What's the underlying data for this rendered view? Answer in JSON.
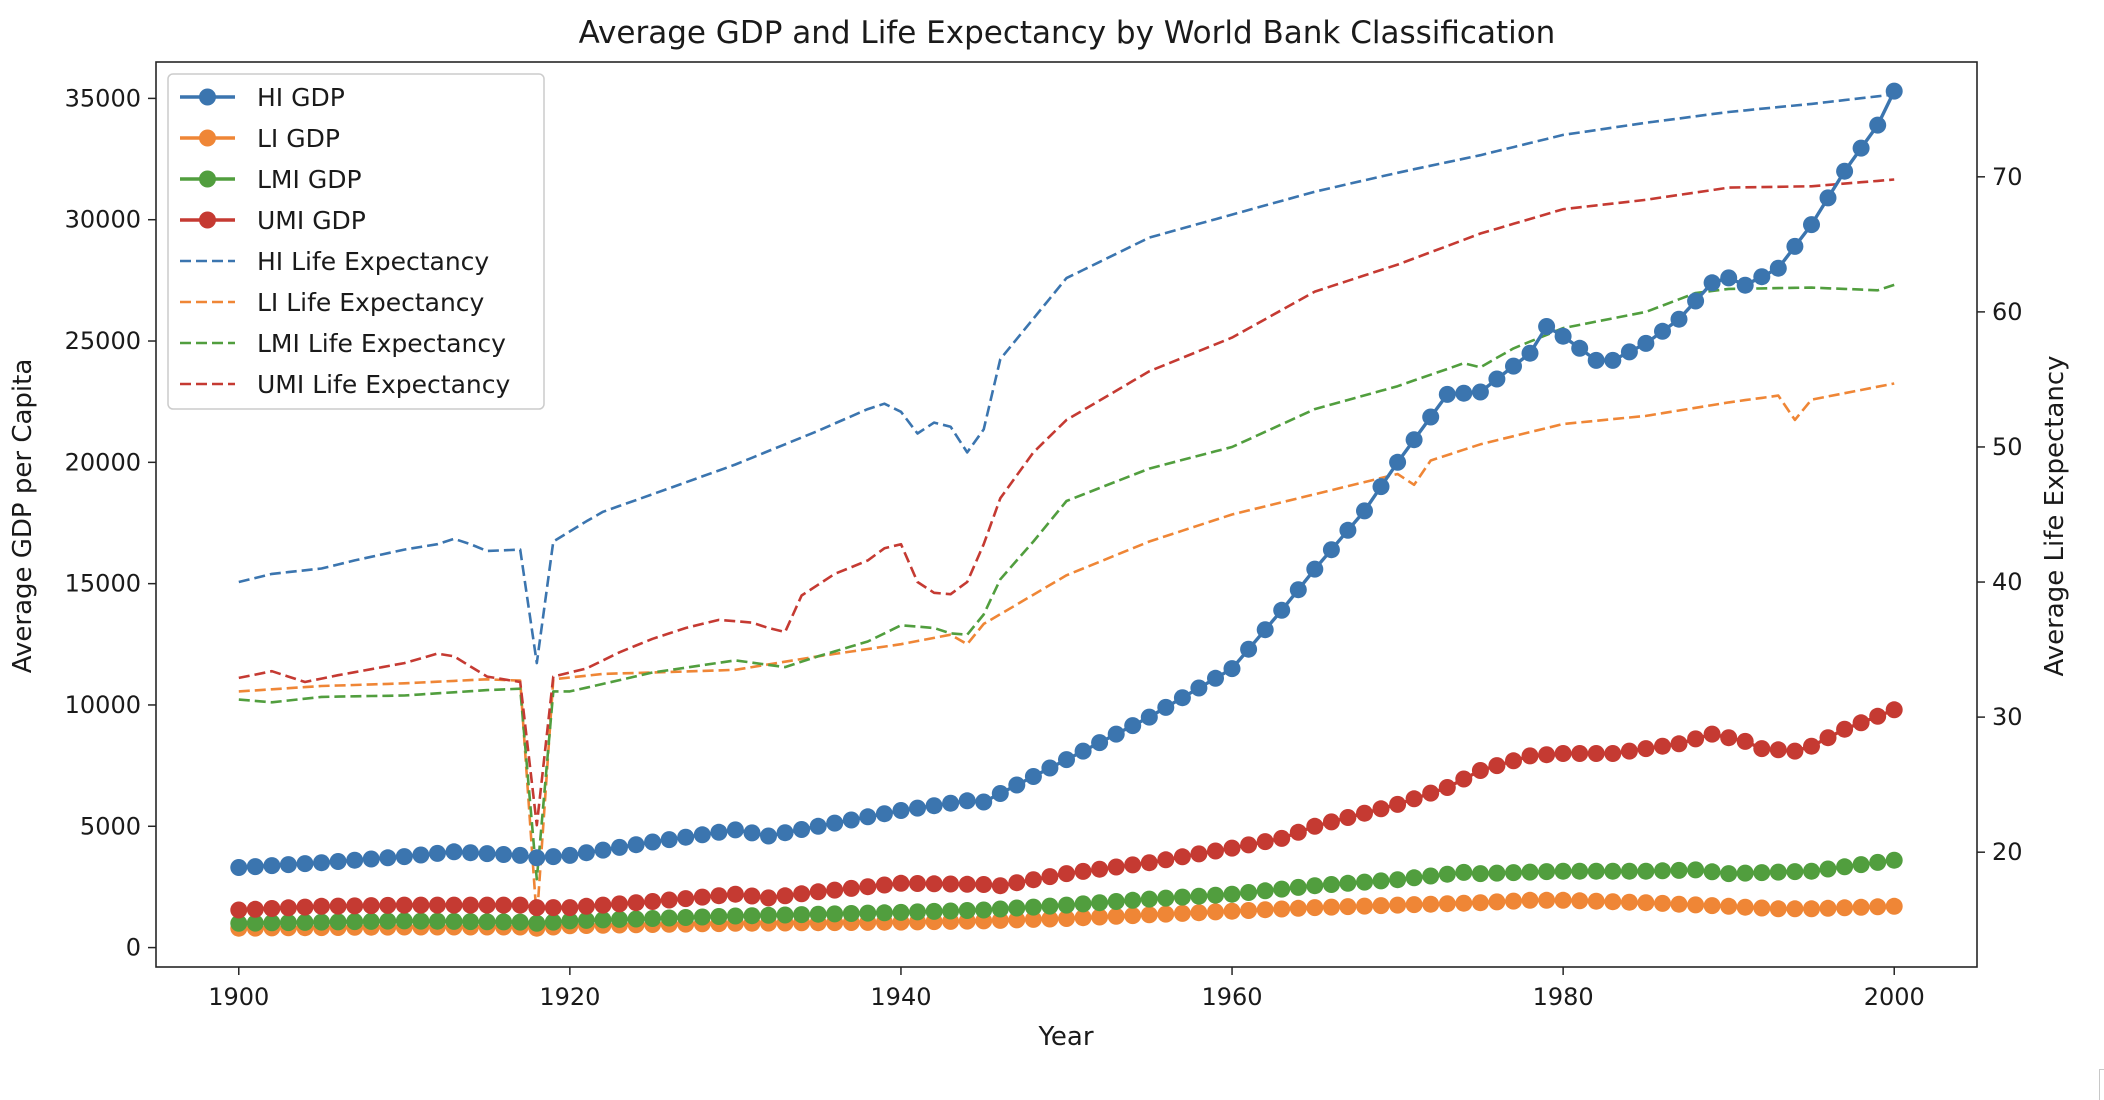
{
  "chart_data": {
    "type": "line",
    "title": "Average GDP and Life Expectancy by World Bank Classification",
    "xlabel": "Year",
    "ylabel": "Average GDP per Capita",
    "y2label": "Average Life Expectancy",
    "xlim": [
      1895,
      2005
    ],
    "ylim": [
      -800,
      36500
    ],
    "y2lim": [
      11.5,
      78.5
    ],
    "xticks": [
      1900,
      1920,
      1940,
      1960,
      1980,
      2000
    ],
    "yticks": [
      0,
      5000,
      10000,
      15000,
      20000,
      25000,
      30000,
      35000
    ],
    "y2ticks": [
      20,
      30,
      40,
      50,
      60,
      70
    ],
    "grid": false,
    "legend_position": "upper-left",
    "x_start": 1900,
    "x_end": 2000,
    "series": [
      {
        "name": "HI GDP",
        "axis": "left",
        "style": "solid-marker",
        "color": "#3b75af",
        "points": [
          [
            1900,
            3300
          ],
          [
            1905,
            3500
          ],
          [
            1910,
            3750
          ],
          [
            1913,
            3950
          ],
          [
            1917,
            3800
          ],
          [
            1918,
            3700
          ],
          [
            1920,
            3800
          ],
          [
            1925,
            4350
          ],
          [
            1930,
            4850
          ],
          [
            1932,
            4600
          ],
          [
            1935,
            5000
          ],
          [
            1940,
            5650
          ],
          [
            1944,
            6050
          ],
          [
            1945,
            6000
          ],
          [
            1950,
            7750
          ],
          [
            1955,
            9500
          ],
          [
            1960,
            11500
          ],
          [
            1963,
            13900
          ],
          [
            1965,
            15600
          ],
          [
            1968,
            18000
          ],
          [
            1970,
            20000
          ],
          [
            1973,
            22800
          ],
          [
            1975,
            22900
          ],
          [
            1978,
            24500
          ],
          [
            1979,
            25600
          ],
          [
            1980,
            25200
          ],
          [
            1982,
            24200
          ],
          [
            1983,
            24200
          ],
          [
            1985,
            24900
          ],
          [
            1987,
            25900
          ],
          [
            1989,
            27400
          ],
          [
            1990,
            27600
          ],
          [
            1991,
            27300
          ],
          [
            1993,
            28000
          ],
          [
            1995,
            29800
          ],
          [
            1997,
            32000
          ],
          [
            1999,
            33900
          ],
          [
            2000,
            35300
          ]
        ]
      },
      {
        "name": "LI GDP",
        "axis": "left",
        "style": "solid-marker",
        "color": "#ef8636",
        "points": [
          [
            1900,
            800
          ],
          [
            1910,
            850
          ],
          [
            1917,
            850
          ],
          [
            1918,
            800
          ],
          [
            1920,
            900
          ],
          [
            1930,
            1000
          ],
          [
            1940,
            1050
          ],
          [
            1945,
            1100
          ],
          [
            1950,
            1200
          ],
          [
            1955,
            1350
          ],
          [
            1960,
            1500
          ],
          [
            1965,
            1650
          ],
          [
            1970,
            1750
          ],
          [
            1975,
            1850
          ],
          [
            1978,
            1950
          ],
          [
            1980,
            1950
          ],
          [
            1985,
            1850
          ],
          [
            1990,
            1700
          ],
          [
            1993,
            1600
          ],
          [
            1995,
            1600
          ],
          [
            2000,
            1700
          ]
        ]
      },
      {
        "name": "LMI GDP",
        "axis": "left",
        "style": "solid-marker",
        "color": "#519e3e",
        "points": [
          [
            1900,
            1000
          ],
          [
            1910,
            1100
          ],
          [
            1917,
            1050
          ],
          [
            1918,
            1000
          ],
          [
            1920,
            1100
          ],
          [
            1930,
            1300
          ],
          [
            1940,
            1450
          ],
          [
            1945,
            1550
          ],
          [
            1950,
            1750
          ],
          [
            1955,
            2000
          ],
          [
            1960,
            2200
          ],
          [
            1965,
            2550
          ],
          [
            1970,
            2800
          ],
          [
            1974,
            3100
          ],
          [
            1975,
            3050
          ],
          [
            1980,
            3150
          ],
          [
            1985,
            3150
          ],
          [
            1988,
            3200
          ],
          [
            1990,
            3050
          ],
          [
            1995,
            3150
          ],
          [
            2000,
            3600
          ]
        ]
      },
      {
        "name": "UMI GDP",
        "axis": "left",
        "style": "solid-marker",
        "color": "#c53a32",
        "points": [
          [
            1900,
            1550
          ],
          [
            1905,
            1700
          ],
          [
            1910,
            1750
          ],
          [
            1917,
            1750
          ],
          [
            1918,
            1650
          ],
          [
            1920,
            1650
          ],
          [
            1925,
            1900
          ],
          [
            1930,
            2200
          ],
          [
            1932,
            2050
          ],
          [
            1935,
            2300
          ],
          [
            1940,
            2650
          ],
          [
            1945,
            2600
          ],
          [
            1946,
            2550
          ],
          [
            1950,
            3050
          ],
          [
            1955,
            3500
          ],
          [
            1960,
            4100
          ],
          [
            1963,
            4500
          ],
          [
            1965,
            5000
          ],
          [
            1970,
            5900
          ],
          [
            1973,
            6600
          ],
          [
            1975,
            7300
          ],
          [
            1978,
            7900
          ],
          [
            1980,
            8000
          ],
          [
            1983,
            8000
          ],
          [
            1985,
            8200
          ],
          [
            1987,
            8400
          ],
          [
            1989,
            8800
          ],
          [
            1991,
            8500
          ],
          [
            1992,
            8200
          ],
          [
            1994,
            8100
          ],
          [
            1995,
            8300
          ],
          [
            1997,
            9000
          ],
          [
            2000,
            9800
          ]
        ]
      },
      {
        "name": "HI Life Expectancy",
        "axis": "right",
        "style": "dashed",
        "color": "#3b75af",
        "points": [
          [
            1900,
            40.0
          ],
          [
            1902,
            40.6
          ],
          [
            1905,
            41.0
          ],
          [
            1907,
            41.6
          ],
          [
            1910,
            42.4
          ],
          [
            1912,
            42.8
          ],
          [
            1913,
            43.2
          ],
          [
            1914,
            42.8
          ],
          [
            1915,
            42.3
          ],
          [
            1917,
            42.4
          ],
          [
            1918,
            34.0
          ],
          [
            1919,
            43.0
          ],
          [
            1921,
            44.5
          ],
          [
            1922,
            45.2
          ],
          [
            1925,
            46.5
          ],
          [
            1930,
            48.7
          ],
          [
            1935,
            51.2
          ],
          [
            1938,
            52.8
          ],
          [
            1939,
            53.2
          ],
          [
            1940,
            52.6
          ],
          [
            1941,
            51.0
          ],
          [
            1942,
            51.8
          ],
          [
            1943,
            51.5
          ],
          [
            1944,
            49.6
          ],
          [
            1945,
            51.3
          ],
          [
            1946,
            56.5
          ],
          [
            1950,
            62.5
          ],
          [
            1955,
            65.5
          ],
          [
            1960,
            67.2
          ],
          [
            1965,
            68.9
          ],
          [
            1970,
            70.3
          ],
          [
            1975,
            71.6
          ],
          [
            1980,
            73.1
          ],
          [
            1985,
            74.0
          ],
          [
            1990,
            74.8
          ],
          [
            1995,
            75.4
          ],
          [
            2000,
            76.1
          ]
        ]
      },
      {
        "name": "LI Life Expectancy",
        "axis": "right",
        "style": "dashed",
        "color": "#ef8636",
        "points": [
          [
            1900,
            31.9
          ],
          [
            1905,
            32.3
          ],
          [
            1910,
            32.5
          ],
          [
            1915,
            32.8
          ],
          [
            1917,
            32.7
          ],
          [
            1918,
            15.0
          ],
          [
            1919,
            32.8
          ],
          [
            1922,
            33.2
          ],
          [
            1925,
            33.3
          ],
          [
            1930,
            33.5
          ],
          [
            1935,
            34.5
          ],
          [
            1940,
            35.4
          ],
          [
            1943,
            36.1
          ],
          [
            1944,
            35.4
          ],
          [
            1945,
            36.9
          ],
          [
            1950,
            40.5
          ],
          [
            1955,
            43.0
          ],
          [
            1960,
            45.0
          ],
          [
            1965,
            46.5
          ],
          [
            1970,
            48.0
          ],
          [
            1971,
            47.2
          ],
          [
            1972,
            49.0
          ],
          [
            1975,
            50.2
          ],
          [
            1980,
            51.7
          ],
          [
            1985,
            52.3
          ],
          [
            1990,
            53.3
          ],
          [
            1993,
            53.8
          ],
          [
            1994,
            52.0
          ],
          [
            1995,
            53.5
          ],
          [
            2000,
            54.7
          ]
        ]
      },
      {
        "name": "LMI Life Expectancy",
        "axis": "right",
        "style": "dashed",
        "color": "#519e3e",
        "points": [
          [
            1900,
            31.3
          ],
          [
            1902,
            31.1
          ],
          [
            1905,
            31.5
          ],
          [
            1910,
            31.6
          ],
          [
            1915,
            32.0
          ],
          [
            1917,
            32.1
          ],
          [
            1918,
            18.0
          ],
          [
            1919,
            31.9
          ],
          [
            1920,
            31.9
          ],
          [
            1925,
            33.3
          ],
          [
            1930,
            34.2
          ],
          [
            1933,
            33.7
          ],
          [
            1935,
            34.5
          ],
          [
            1938,
            35.6
          ],
          [
            1940,
            36.8
          ],
          [
            1942,
            36.6
          ],
          [
            1943,
            36.2
          ],
          [
            1944,
            36.1
          ],
          [
            1945,
            37.6
          ],
          [
            1946,
            40.2
          ],
          [
            1948,
            43.0
          ],
          [
            1950,
            46.0
          ],
          [
            1955,
            48.4
          ],
          [
            1960,
            50.0
          ],
          [
            1965,
            52.8
          ],
          [
            1970,
            54.5
          ],
          [
            1974,
            56.2
          ],
          [
            1975,
            55.9
          ],
          [
            1977,
            57.3
          ],
          [
            1980,
            58.8
          ],
          [
            1985,
            60.0
          ],
          [
            1988,
            61.4
          ],
          [
            1990,
            61.7
          ],
          [
            1995,
            61.8
          ],
          [
            1999,
            61.6
          ],
          [
            2000,
            62.0
          ]
        ]
      },
      {
        "name": "UMI Life Expectancy",
        "axis": "right",
        "style": "dashed",
        "color": "#c53a32",
        "points": [
          [
            1900,
            32.9
          ],
          [
            1902,
            33.4
          ],
          [
            1904,
            32.6
          ],
          [
            1906,
            33.1
          ],
          [
            1910,
            34.0
          ],
          [
            1912,
            34.7
          ],
          [
            1913,
            34.5
          ],
          [
            1915,
            33.0
          ],
          [
            1917,
            32.6
          ],
          [
            1918,
            22.0
          ],
          [
            1919,
            33.0
          ],
          [
            1921,
            33.6
          ],
          [
            1923,
            34.8
          ],
          [
            1925,
            35.8
          ],
          [
            1927,
            36.6
          ],
          [
            1929,
            37.2
          ],
          [
            1931,
            37.0
          ],
          [
            1932,
            36.6
          ],
          [
            1933,
            36.3
          ],
          [
            1934,
            39.0
          ],
          [
            1936,
            40.6
          ],
          [
            1938,
            41.6
          ],
          [
            1939,
            42.5
          ],
          [
            1940,
            42.8
          ],
          [
            1941,
            40.0
          ],
          [
            1942,
            39.2
          ],
          [
            1943,
            39.1
          ],
          [
            1944,
            40.0
          ],
          [
            1945,
            42.8
          ],
          [
            1946,
            46.2
          ],
          [
            1948,
            49.6
          ],
          [
            1950,
            52.0
          ],
          [
            1955,
            55.6
          ],
          [
            1960,
            58.1
          ],
          [
            1965,
            61.5
          ],
          [
            1970,
            63.5
          ],
          [
            1975,
            65.8
          ],
          [
            1980,
            67.6
          ],
          [
            1985,
            68.3
          ],
          [
            1990,
            69.2
          ],
          [
            1995,
            69.3
          ],
          [
            2000,
            69.8
          ]
        ]
      }
    ]
  }
}
